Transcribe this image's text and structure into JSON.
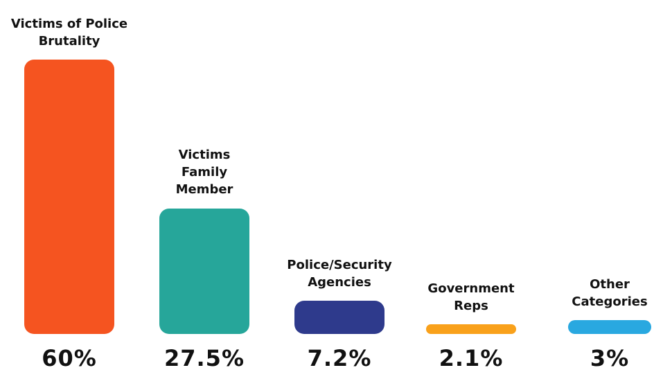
{
  "chart_data": {
    "type": "bar",
    "categories": [
      "Victims of Police Brutality",
      "Victims Family Member",
      "Police/Security Agencies",
      "Government Reps",
      "Other Categories"
    ],
    "values": [
      60,
      27.5,
      7.2,
      2.1,
      3
    ],
    "value_labels": [
      "60%",
      "27.5%",
      "7.2%",
      "2.1%",
      "3%"
    ],
    "colors": [
      "#f55420",
      "#26a69a",
      "#2e3a8c",
      "#f9a11b",
      "#29a8e0"
    ]
  }
}
